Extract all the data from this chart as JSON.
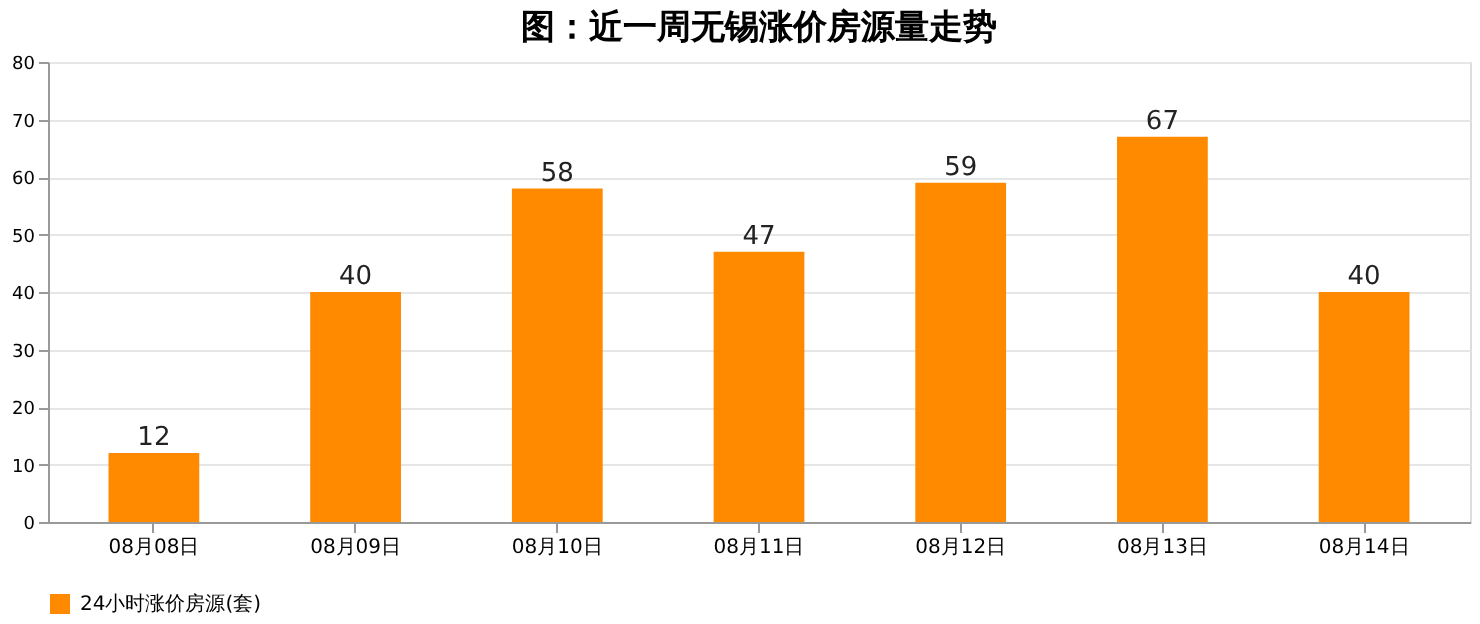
{
  "chart_data": {
    "type": "bar",
    "title": "图：近一周无锡涨价房源量走势",
    "categories": [
      "08月08日",
      "08月09日",
      "08月10日",
      "08月11日",
      "08月12日",
      "08月13日",
      "08月14日"
    ],
    "series": [
      {
        "name": "24小时涨价房源(套)",
        "color": "#ff8a00",
        "values": [
          12,
          40,
          58,
          47,
          59,
          67,
          40
        ]
      }
    ],
    "ylim": [
      0,
      80
    ],
    "yticks": [
      0,
      10,
      20,
      30,
      40,
      50,
      60,
      70,
      80
    ],
    "grid": "y",
    "legend": "bottom",
    "data_labels": true
  }
}
